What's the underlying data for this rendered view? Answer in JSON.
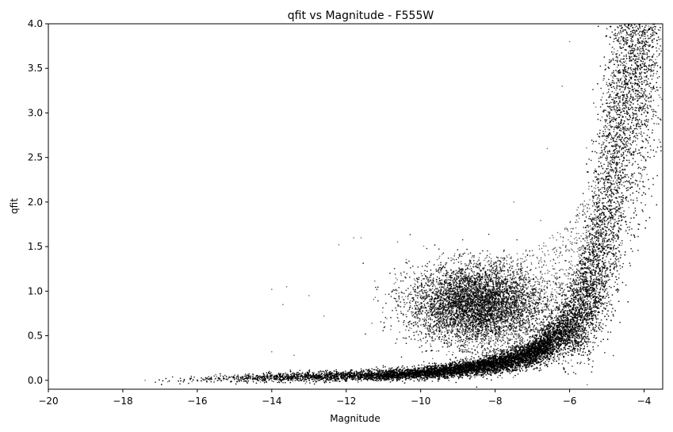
{
  "chart_data": {
    "type": "scatter",
    "title": "qfit vs Magnitude - F555W",
    "xlabel": "Magnitude",
    "ylabel": "qfit",
    "xlim": [
      -20,
      -3.5
    ],
    "ylim": [
      -0.1,
      4.0
    ],
    "xticks": [
      -20,
      -18,
      -16,
      -14,
      -12,
      -10,
      -8,
      -6,
      -4
    ],
    "xtick_labels": [
      "−20",
      "−18",
      "−16",
      "−14",
      "−12",
      "−10",
      "−8",
      "−6",
      "−4"
    ],
    "yticks": [
      0.0,
      0.5,
      1.0,
      1.5,
      2.0,
      2.5,
      3.0,
      3.5,
      4.0
    ],
    "ytick_labels": [
      "0.0",
      "0.5",
      "1.0",
      "1.5",
      "2.0",
      "2.5",
      "3.0",
      "3.5",
      "4.0"
    ],
    "grid": false,
    "marker_color": "#000000",
    "marker_alpha": 0.6,
    "series": [
      {
        "trend": {
          "x": [
            -17.5,
            -16,
            -15,
            -14,
            -13,
            -12,
            -11,
            -10,
            -9,
            -8,
            -7.5,
            -7,
            -6.5,
            -6,
            -5.5,
            -5.25,
            -5,
            -4.8,
            -4.6,
            -4.4,
            -4.2
          ],
          "y": [
            0.0,
            0.01,
            0.02,
            0.03,
            0.04,
            0.05,
            0.06,
            0.08,
            0.12,
            0.18,
            0.23,
            0.3,
            0.42,
            0.6,
            0.95,
            1.3,
            1.8,
            2.4,
            3.0,
            3.6,
            4.0
          ]
        },
        "cluster": {
          "x_center": -8.5,
          "y_center": 0.85,
          "x_spread": 0.9,
          "y_spread": 0.22
        },
        "sample_points": [
          {
            "x": -17.4,
            "y": 0.0
          },
          {
            "x": -16.0,
            "y": 0.0
          },
          {
            "x": -14.0,
            "y": 1.02
          },
          {
            "x": -13.6,
            "y": 1.05
          },
          {
            "x": -13.7,
            "y": 0.85
          },
          {
            "x": -11.8,
            "y": 1.6
          },
          {
            "x": -11.6,
            "y": 1.6
          },
          {
            "x": -12.2,
            "y": 1.52
          },
          {
            "x": -13.0,
            "y": 0.95
          },
          {
            "x": -12.6,
            "y": 0.72
          },
          {
            "x": -14.0,
            "y": 0.32
          },
          {
            "x": -13.4,
            "y": 0.28
          },
          {
            "x": -6.6,
            "y": 2.6
          },
          {
            "x": -6.2,
            "y": 3.3
          },
          {
            "x": -6.0,
            "y": 3.8
          },
          {
            "x": -3.6,
            "y": 3.2
          },
          {
            "x": -3.6,
            "y": 2.7
          },
          {
            "x": -7.5,
            "y": 2.0
          }
        ]
      }
    ]
  }
}
